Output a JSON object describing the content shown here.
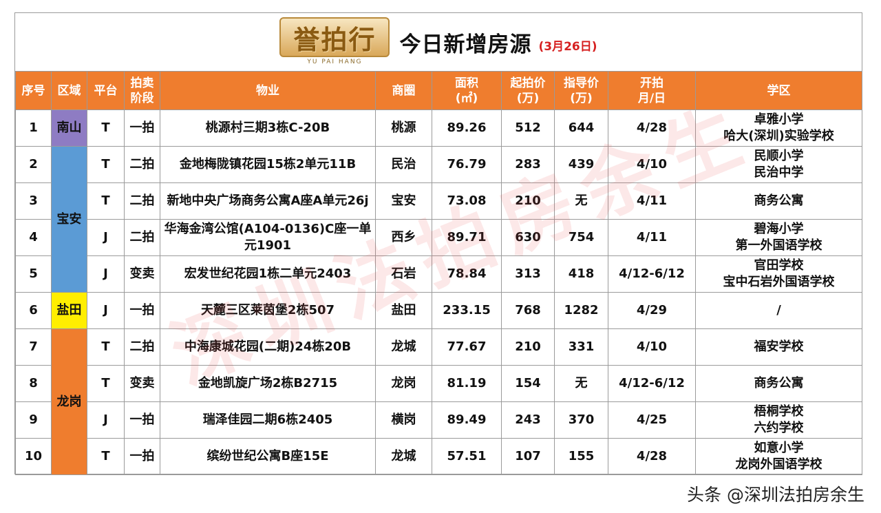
{
  "title": {
    "logo_text": "誉拍行",
    "logo_sub": "YU PAI HANG",
    "main": "今日新增房源",
    "date": "(3月26日)"
  },
  "headers": {
    "seq": "序号",
    "region": "区域",
    "platform": "平台",
    "stage_1": "拍卖",
    "stage_2": "阶段",
    "property": "物业",
    "district": "商圈",
    "area_1": "面积",
    "area_2": "(㎡)",
    "start_price_1": "起拍价",
    "start_price_2": "(万)",
    "guide_price_1": "指导价",
    "guide_price_2": "(万)",
    "open_date_1": "开拍",
    "open_date_2": "月/日",
    "school": "学区"
  },
  "regions": {
    "nanshan": "南山",
    "baoan": "宝安",
    "yantian": "盐田",
    "longgang": "龙岗"
  },
  "rows": [
    {
      "seq": "1",
      "platform": "T",
      "stage": "一拍",
      "property": "桃源村三期3栋C-20B",
      "district": "桃源",
      "area": "89.26",
      "start": "512",
      "guide": "644",
      "date": "4/28",
      "school_1": "卓雅小学",
      "school_2": "哈大(深圳)实验学校"
    },
    {
      "seq": "2",
      "platform": "T",
      "stage": "二拍",
      "property": "金地梅陇镇花园15栋2单元11B",
      "district": "民治",
      "area": "76.79",
      "start": "283",
      "guide": "439",
      "date": "4/10",
      "school_1": "民顺小学",
      "school_2": "民治中学"
    },
    {
      "seq": "3",
      "platform": "T",
      "stage": "二拍",
      "property": "新地中央广场商务公寓A座A单元26j",
      "district": "宝安",
      "area": "73.08",
      "start": "210",
      "guide": "无",
      "date": "4/11",
      "school_1": "商务公寓",
      "school_2": ""
    },
    {
      "seq": "4",
      "platform": "J",
      "stage": "二拍",
      "property": "华海金湾公馆(A104-0136)C座一单元1901",
      "district": "西乡",
      "area": "89.71",
      "start": "630",
      "guide": "754",
      "date": "4/11",
      "school_1": "碧海小学",
      "school_2": "第一外国语学校"
    },
    {
      "seq": "5",
      "platform": "J",
      "stage": "变卖",
      "property": "宏发世纪花园1栋二单元2403",
      "district": "石岩",
      "area": "78.84",
      "start": "313",
      "guide": "418",
      "date": "4/12-6/12",
      "school_1": "官田学校",
      "school_2": "宝中石岩外国语学校"
    },
    {
      "seq": "6",
      "platform": "J",
      "stage": "一拍",
      "property": "天麓三区莱茵堡2栋507",
      "district": "盐田",
      "area": "233.15",
      "start": "768",
      "guide": "1282",
      "date": "4/29",
      "school_1": "/",
      "school_2": ""
    },
    {
      "seq": "7",
      "platform": "T",
      "stage": "二拍",
      "property": "中海康城花园(二期)24栋20B",
      "district": "龙城",
      "area": "77.67",
      "start": "210",
      "guide": "331",
      "date": "4/10",
      "school_1": "福安学校",
      "school_2": ""
    },
    {
      "seq": "8",
      "platform": "T",
      "stage": "变卖",
      "property": "金地凯旋广场2栋B2715",
      "district": "龙岗",
      "area": "81.19",
      "start": "154",
      "guide": "无",
      "date": "4/12-6/12",
      "school_1": "商务公寓",
      "school_2": ""
    },
    {
      "seq": "9",
      "platform": "J",
      "stage": "一拍",
      "property": "瑞泽佳园二期6栋2405",
      "district": "横岗",
      "area": "89.49",
      "start": "243",
      "guide": "370",
      "date": "4/25",
      "school_1": "梧桐学校",
      "school_2": "六约学校"
    },
    {
      "seq": "10",
      "platform": "T",
      "stage": "一拍",
      "property": "缤纷世纪公寓B座15E",
      "district": "龙城",
      "area": "57.51",
      "start": "107",
      "guide": "155",
      "date": "4/28",
      "school_1": "如意小学",
      "school_2": "龙岗外国语学校"
    }
  ],
  "watermark": "深圳法拍房余生",
  "credit": "头条 @深圳法拍房余生",
  "colors": {
    "header_bg": "#ef7d2e",
    "price_red": "#d62020",
    "nanshan": "#8e7cc3",
    "baoan": "#5b9bd5",
    "yantian": "#ffee00",
    "longgang": "#ef7d2e"
  }
}
